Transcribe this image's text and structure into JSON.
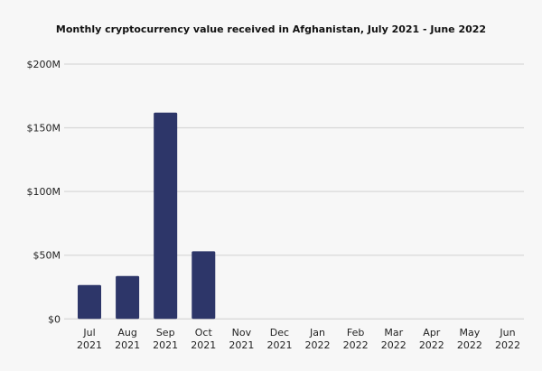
{
  "chart_data": {
    "type": "bar",
    "title": "Monthly cryptocurrency value received in Afghanistan, July 2021 - June 2022",
    "xlabel": "",
    "ylabel": "",
    "categories": [
      [
        "Jul",
        "2021"
      ],
      [
        "Aug",
        "2021"
      ],
      [
        "Sep",
        "2021"
      ],
      [
        "Oct",
        "2021"
      ],
      [
        "Nov",
        "2021"
      ],
      [
        "Dec",
        "2021"
      ],
      [
        "Jan",
        "2022"
      ],
      [
        "Feb",
        "2022"
      ],
      [
        "Mar",
        "2022"
      ],
      [
        "Apr",
        "2022"
      ],
      [
        "May",
        "2022"
      ],
      [
        "Jun",
        "2022"
      ]
    ],
    "values": [
      26.6,
      33.7,
      161.9,
      53.1,
      0,
      0,
      0,
      0,
      0,
      0,
      0,
      0
    ],
    "unit": "USD millions",
    "ylim": [
      0,
      200
    ],
    "yticks": [
      0,
      50,
      100,
      150,
      200
    ],
    "ytick_labels": [
      "$0",
      "$50M",
      "$100M",
      "$150M",
      "$200M"
    ],
    "grid": true,
    "bar_color": "#2d3669",
    "grid_color": "#d9d9d9"
  }
}
